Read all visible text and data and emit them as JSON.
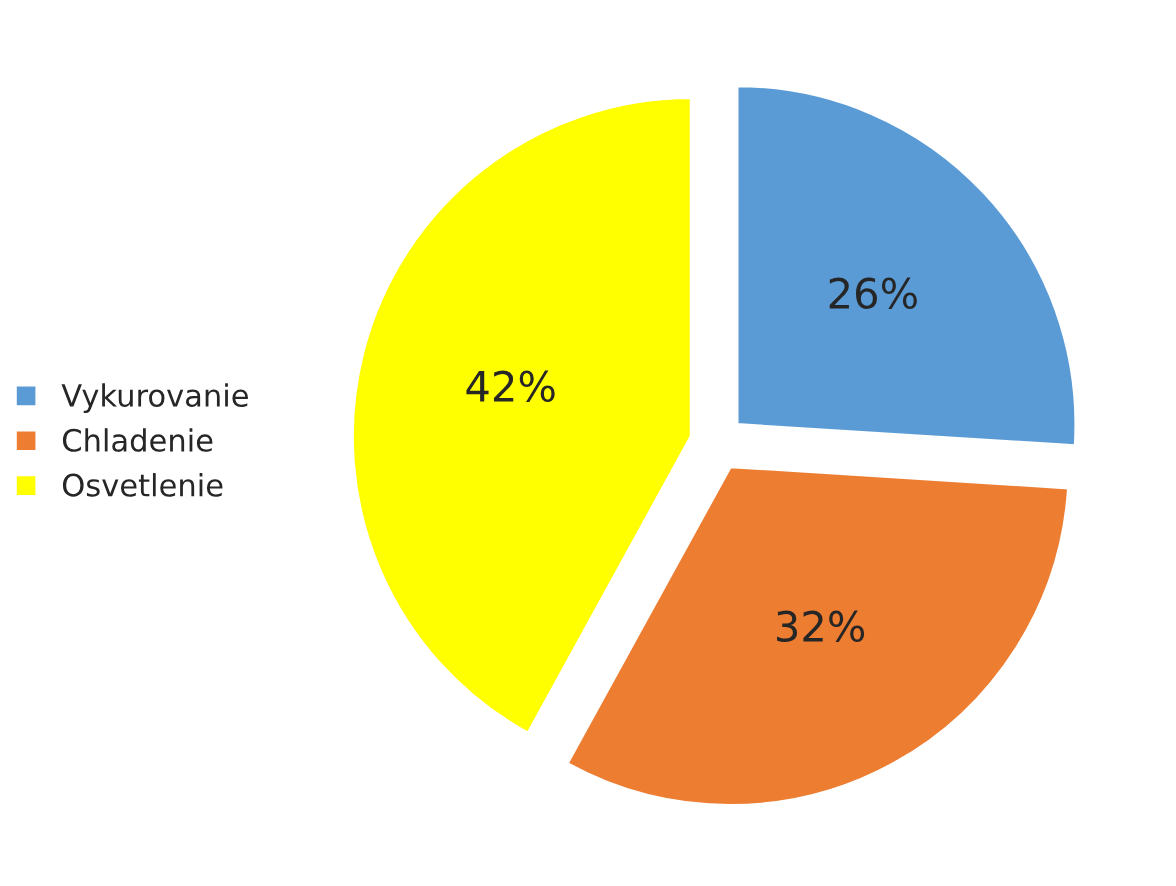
{
  "chart_data": {
    "type": "pie",
    "categories": [
      "Vykurovanie",
      "Chladenie",
      "Osvetlenie"
    ],
    "values": [
      26,
      32,
      42
    ],
    "value_labels": [
      "26%",
      "32%",
      "42%"
    ],
    "colors": [
      "#5b9bd5",
      "#ed7d31",
      "#ffff00"
    ],
    "legend": "left"
  }
}
